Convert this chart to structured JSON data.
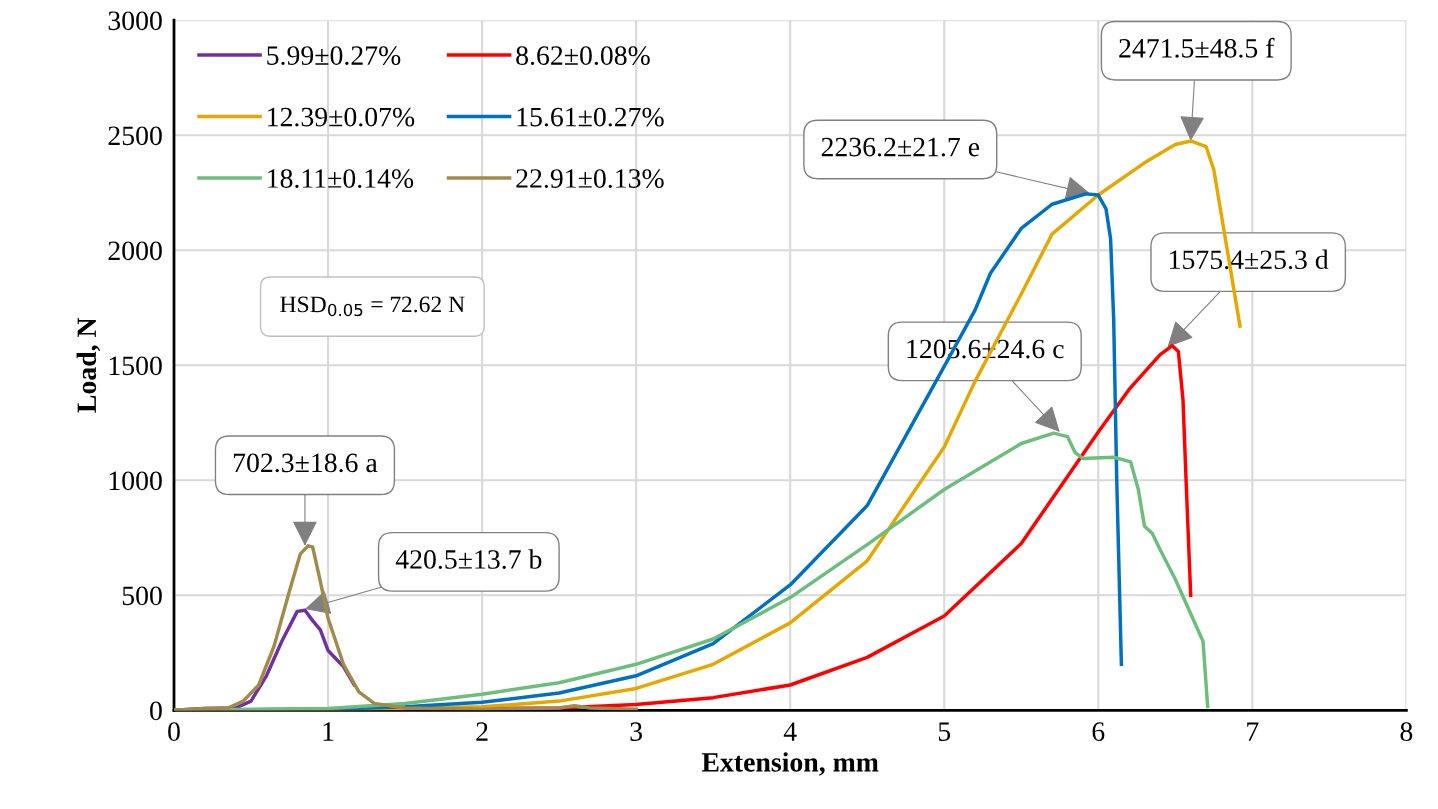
{
  "chart_data": {
    "type": "line",
    "xlabel": "Extension, mm",
    "ylabel": "Load, N",
    "xlim": [
      0,
      8
    ],
    "ylim": [
      0,
      3000
    ],
    "xticks": [
      0,
      1,
      2,
      3,
      4,
      5,
      6,
      7,
      8
    ],
    "yticks": [
      0,
      500,
      1000,
      1500,
      2000,
      2500,
      3000
    ],
    "grid": true,
    "legend": "top left",
    "line_style": "solid",
    "marker": "none",
    "series": [
      {
        "name": "5.99±0.27%",
        "color": "#7030a0",
        "x": [
          0,
          0.2,
          0.4,
          0.5,
          0.6,
          0.7,
          0.8,
          0.85,
          0.9,
          0.95,
          1.0,
          1.1,
          1.17
        ],
        "values": [
          0,
          8,
          10,
          40,
          150,
          300,
          430,
          435,
          390,
          350,
          260,
          190,
          110
        ]
      },
      {
        "name": "8.62±0.08%",
        "color": "#ff0000",
        "x": [
          0,
          2.5,
          3,
          3.5,
          4,
          4.5,
          5,
          5.5,
          6,
          6.2,
          6.4,
          6.48,
          6.52,
          6.55,
          6.57,
          6.6
        ],
        "values": [
          0,
          10,
          25,
          55,
          110,
          230,
          410,
          725,
          1210,
          1395,
          1545,
          1585,
          1560,
          1350,
          1000,
          500
        ]
      },
      {
        "name": "12.39±0.07%",
        "color": "#e6a800",
        "x": [
          0,
          1,
          2,
          2.5,
          3,
          3.5,
          4,
          4.5,
          5,
          5.2,
          5.5,
          5.7,
          6,
          6.3,
          6.5,
          6.6,
          6.7,
          6.75,
          6.8,
          6.85,
          6.92
        ],
        "values": [
          0,
          3,
          15,
          40,
          95,
          200,
          380,
          650,
          1145,
          1430,
          1810,
          2070,
          2240,
          2380,
          2460,
          2475,
          2450,
          2350,
          2150,
          1950,
          1670
        ]
      },
      {
        "name": "15.61±0.27%",
        "color": "#0070c0",
        "x": [
          0,
          1,
          1.5,
          2,
          2.5,
          3,
          3.5,
          4,
          4.5,
          5,
          5.2,
          5.3,
          5.5,
          5.7,
          5.92,
          6.0,
          6.05,
          6.08,
          6.1,
          6.12,
          6.15
        ],
        "values": [
          0,
          5,
          15,
          35,
          75,
          150,
          290,
          545,
          890,
          1495,
          1740,
          1900,
          2095,
          2200,
          2245,
          2240,
          2180,
          2050,
          1700,
          1000,
          200
        ]
      },
      {
        "name": "18.11±0.14%",
        "color": "#6dbd7d",
        "x": [
          0,
          1,
          1.5,
          2,
          2.5,
          3,
          3.5,
          4,
          4.5,
          5,
          5.5,
          5.71,
          5.8,
          5.85,
          5.9,
          6.1,
          6.21,
          6.26,
          6.3,
          6.35,
          6.4,
          6.5,
          6.6,
          6.68,
          6.71
        ],
        "values": [
          0,
          8,
          30,
          70,
          120,
          200,
          310,
          490,
          720,
          960,
          1160,
          1205,
          1190,
          1120,
          1095,
          1100,
          1080,
          960,
          800,
          770,
          700,
          570,
          420,
          300,
          17
        ]
      },
      {
        "name": "22.91±0.13%",
        "color": "#a08b4a",
        "x": [
          0,
          0.2,
          0.35,
          0.45,
          0.55,
          0.65,
          0.75,
          0.82,
          0.87,
          0.9,
          0.95,
          1.0,
          1.05,
          1.1,
          1.2,
          1.3,
          1.5,
          2,
          2.5,
          2.6,
          2.7,
          3
        ],
        "values": [
          0,
          8,
          10,
          40,
          110,
          280,
          520,
          680,
          715,
          710,
          560,
          400,
          300,
          200,
          80,
          30,
          10,
          5,
          10,
          20,
          10,
          5
        ]
      }
    ],
    "annotations": [
      {
        "text": "702.3±18.6 a",
        "x": 0.85,
        "y": 715
      },
      {
        "text": "420.5±13.7 b",
        "x": 0.85,
        "y": 440
      },
      {
        "text": "1205.6±24.6 c",
        "x": 5.75,
        "y": 1210
      },
      {
        "text": "1575.4±25.3 d",
        "x": 6.45,
        "y": 1580
      },
      {
        "text": "2236.2±21.7 e",
        "x": 5.95,
        "y": 2245
      },
      {
        "text": "2471.5±48.5 f",
        "x": 6.6,
        "y": 2475
      },
      "HSD$_{0.05}$ = 72.62 N"
    ]
  }
}
